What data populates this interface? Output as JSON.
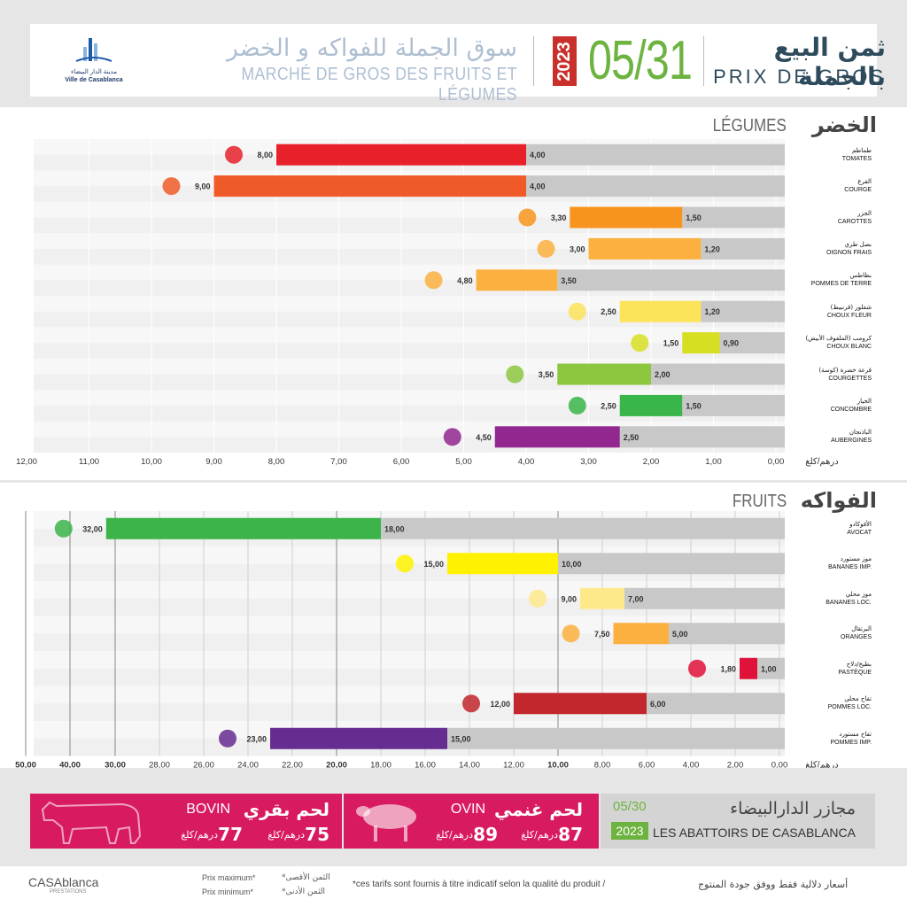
{
  "header": {
    "logo_text_ar": "مدينة الدار البيضاء",
    "logo_text_fr": "Ville de Casablanca",
    "market_ar": "سوق الجملة للفواكه و الخضر",
    "market_fr": "MARCHÉ DE GROS DES FRUITS ET LÉGUMES",
    "year": "2023",
    "date": "05/31",
    "title_ar": "ثمن البيع بالجملة",
    "title_fr": "PRIX DE GROS"
  },
  "vegetables": {
    "title_ar": "الخضر",
    "title_fr": "LÉGUMES"
  },
  "fruits": {
    "title_ar": "الفواكه",
    "title_fr": "FRUITS"
  },
  "unit_label": "درهم/كلغ",
  "chart_data": [
    {
      "type": "bar",
      "title": "LÉGUMES",
      "xlim": [
        12,
        0
      ],
      "ticks": [
        "12,00",
        "11,00",
        "10,00",
        "9,00",
        "8,00",
        "7,00",
        "6,00",
        "5,00",
        "4,00",
        "3,00",
        "2,00",
        "1,00",
        "0,00"
      ],
      "categories_ar": [
        "طماطم",
        "القرع",
        "الجزر",
        "بصل طري",
        "بطاطس",
        "شفلور (قرنبيط)",
        "كرومب (الملفوف الأبيض)",
        "قرعة خضرة (كوسة)",
        "الخيار",
        "الباذنجان"
      ],
      "categories": [
        "TOMATES",
        "COURGE",
        "CAROTTES",
        "OIGNON FRAIS",
        "POMMES DE TERRE",
        "CHOUX FLEUR",
        "CHOUX BLANC",
        "COURGETTES",
        "CONCOMBRE",
        "AUBERGINES"
      ],
      "min": [
        4.0,
        4.0,
        1.5,
        1.2,
        3.5,
        1.2,
        0.9,
        2.0,
        1.5,
        2.5
      ],
      "max": [
        8.0,
        9.0,
        3.3,
        3.0,
        4.8,
        2.5,
        1.5,
        3.5,
        2.5,
        4.5
      ],
      "min_labels": [
        "4,00",
        "4,00",
        "1,50",
        "1,20",
        "3,50",
        "1,20",
        "0,90",
        "2,00",
        "1,50",
        "2,50"
      ],
      "max_labels": [
        "8,00",
        "9,00",
        "3,30",
        "3,00",
        "4,80",
        "2,50",
        "1,50",
        "3,50",
        "2,50",
        "4,50"
      ],
      "colors": [
        "#e8202a",
        "#f05a28",
        "#f7941d",
        "#fbb040",
        "#fbb040",
        "#fbe35a",
        "#d7df23",
        "#8dc63f",
        "#39b54a",
        "#92278f"
      ]
    },
    {
      "type": "bar",
      "title": "FRUITS",
      "xlim": [
        50,
        0
      ],
      "ticks": [
        "50,00",
        "40,00",
        "30,00",
        "28,00",
        "26,00",
        "24,00",
        "22,00",
        "20,00",
        "18,00",
        "16,00",
        "14,00",
        "12,00",
        "10,00",
        "8,00",
        "6,00",
        "4,00",
        "2,00",
        "0,00"
      ],
      "categories_ar": [
        "الأفوكادو",
        "موز مستورد",
        "موز محلي",
        "البرتقال",
        "بطيخ/دلاح",
        "تفاح محلي",
        "تفاح مستورد"
      ],
      "categories": [
        "AVOCAT",
        "BANANES IMP.",
        "BANANES LOC.",
        "ORANGES",
        "PASTÈQUE",
        "POMMES LOC.",
        "POMMES IMP."
      ],
      "min": [
        18.0,
        10.0,
        7.0,
        5.0,
        1.0,
        6.0,
        15.0
      ],
      "max": [
        32.0,
        15.0,
        9.0,
        7.5,
        1.8,
        12.0,
        23.0
      ],
      "min_labels": [
        "18,00",
        "10,00",
        "7,00",
        "5,00",
        "1,00",
        "6,00",
        "15,00"
      ],
      "max_labels": [
        "32,00",
        "15,00",
        "9,00",
        "7,50",
        "1,80",
        "12,00",
        "23,00"
      ],
      "colors": [
        "#3cb44a",
        "#fff200",
        "#fde98a",
        "#fbb040",
        "#e0123a",
        "#c1272d",
        "#662d91"
      ]
    }
  ],
  "meat": {
    "bovin": {
      "ar": "لحم بقري",
      "fr": "BOVIN",
      "price": "75",
      "unit": "درهم/كلغ",
      "price2": "77",
      "unit2": "درهم/كلغ"
    },
    "ovin": {
      "ar": "لحم غنمي",
      "fr": "OVIN",
      "price": "87",
      "unit": "درهم/كلغ",
      "price2": "89",
      "unit2": "درهم/كلغ"
    },
    "abattoirs": {
      "date": "05/30",
      "year": "2023",
      "ar": "مجازر الدارالبيضاء",
      "fr": "LES ABATTOIRS DE CASABLANCA"
    },
    "accent": "#d81b60"
  },
  "footer": {
    "logo": "CASAblanca",
    "logo_sub": "PRESTATIONS",
    "max_fr": "Prix maximum*",
    "min_fr": "Prix minimum*",
    "max_ar": "*الثمن الأقصى",
    "min_ar": "*الثمن الأدنى",
    "note_fr": "*ces tarifs sont fournis à titre indicatif selon la qualité du produit  /",
    "note_ar": "أسعار دلالية فقط ووفق جودة المنتوج"
  }
}
